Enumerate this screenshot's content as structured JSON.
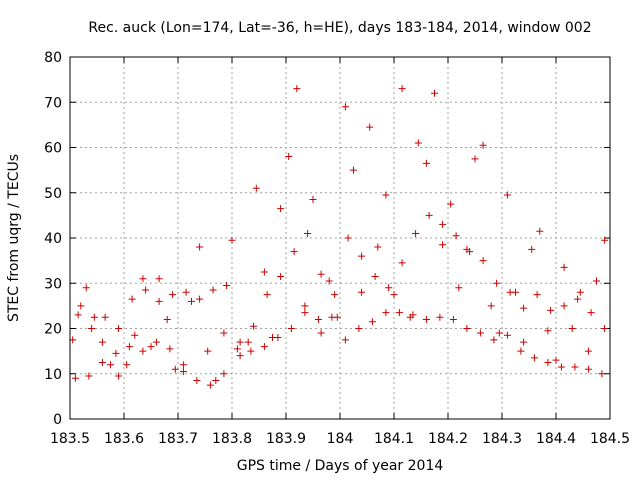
{
  "chart_data": {
    "type": "scatter",
    "title": "Rec. auck (Lon=174, Lat=-36, h=HE), days 183-184, 2014, window 002",
    "xlabel": "GPS time / Days of year 2014",
    "ylabel": "STEC from uqrg / TECUs",
    "xlim": [
      183.5,
      184.5
    ],
    "ylim": [
      0,
      80
    ],
    "xticks": [
      "183.5",
      "183.6",
      "183.7",
      "183.8",
      "183.9",
      "184",
      "184.1",
      "184.2",
      "184.3",
      "184.4",
      "184.5"
    ],
    "yticks": [
      "0",
      "10",
      "20",
      "30",
      "40",
      "50",
      "60",
      "70",
      "80"
    ],
    "grid": true,
    "marker": "+",
    "marker_color": "#cc0000",
    "series": [
      {
        "name": "",
        "points": [
          [
            183.505,
            17.5
          ],
          [
            183.52,
            25.0
          ],
          [
            183.53,
            29.0
          ],
          [
            183.545,
            22.5
          ],
          [
            183.56,
            17.0
          ],
          [
            183.575,
            12.0
          ],
          [
            183.59,
            9.5
          ],
          [
            183.605,
            12.0
          ],
          [
            183.62,
            18.5
          ],
          [
            183.635,
            31.0
          ],
          [
            183.65,
            16.0
          ],
          [
            183.665,
            31.0
          ],
          [
            183.68,
            22.0
          ],
          [
            183.695,
            11.0
          ],
          [
            183.71,
            12.0
          ],
          [
            183.725,
            26.0
          ],
          [
            183.74,
            38.0
          ],
          [
            183.755,
            15.0
          ],
          [
            183.77,
            8.5
          ],
          [
            183.785,
            19.0
          ],
          [
            183.8,
            39.5
          ],
          [
            183.815,
            14.0
          ],
          [
            183.83,
            17.0
          ],
          [
            183.845,
            51.0
          ],
          [
            183.86,
            32.5
          ],
          [
            183.875,
            18.0
          ],
          [
            183.89,
            46.5
          ],
          [
            183.905,
            58.0
          ],
          [
            183.92,
            73.0
          ],
          [
            183.935,
            25.0
          ],
          [
            183.95,
            48.5
          ],
          [
            183.965,
            19.0
          ],
          [
            183.98,
            30.5
          ],
          [
            183.995,
            22.5
          ],
          [
            184.01,
            69.0
          ],
          [
            184.025,
            55.0
          ],
          [
            184.04,
            28.0
          ],
          [
            184.055,
            64.5
          ],
          [
            184.07,
            38.0
          ],
          [
            184.085,
            49.5
          ],
          [
            184.1,
            27.5
          ],
          [
            184.115,
            73.0
          ],
          [
            184.13,
            22.5
          ],
          [
            184.145,
            61.0
          ],
          [
            184.16,
            56.5
          ],
          [
            184.175,
            72.0
          ],
          [
            184.19,
            38.5
          ],
          [
            184.205,
            47.5
          ],
          [
            184.22,
            29.0
          ],
          [
            184.235,
            37.5
          ],
          [
            184.25,
            57.5
          ],
          [
            184.265,
            60.5
          ],
          [
            184.28,
            25.0
          ],
          [
            184.295,
            19.0
          ],
          [
            184.31,
            49.5
          ],
          [
            184.325,
            28.0
          ],
          [
            184.34,
            17.0
          ],
          [
            184.355,
            37.5
          ],
          [
            184.37,
            41.5
          ],
          [
            184.385,
            19.5
          ],
          [
            184.4,
            13.0
          ],
          [
            184.415,
            33.5
          ],
          [
            184.43,
            20.0
          ],
          [
            184.445,
            28.0
          ],
          [
            184.46,
            15.0
          ],
          [
            184.475,
            30.5
          ],
          [
            184.49,
            39.5
          ],
          [
            183.51,
            9.0
          ],
          [
            183.535,
            9.5
          ],
          [
            183.56,
            12.5
          ],
          [
            183.585,
            14.5
          ],
          [
            183.61,
            16.0
          ],
          [
            183.635,
            15.0
          ],
          [
            183.66,
            17.0
          ],
          [
            183.685,
            15.5
          ],
          [
            183.71,
            10.5
          ],
          [
            183.735,
            8.5
          ],
          [
            183.76,
            7.5
          ],
          [
            183.785,
            10.0
          ],
          [
            183.81,
            15.5
          ],
          [
            183.835,
            15.0
          ],
          [
            183.86,
            16.0
          ],
          [
            183.885,
            18.0
          ],
          [
            183.91,
            20.0
          ],
          [
            183.935,
            23.5
          ],
          [
            183.96,
            22.0
          ],
          [
            183.985,
            22.5
          ],
          [
            184.01,
            17.5
          ],
          [
            184.035,
            20.0
          ],
          [
            184.06,
            21.5
          ],
          [
            184.085,
            23.5
          ],
          [
            184.11,
            23.5
          ],
          [
            184.135,
            23.0
          ],
          [
            184.16,
            22.0
          ],
          [
            184.185,
            22.5
          ],
          [
            184.21,
            22.0
          ],
          [
            184.235,
            20.0
          ],
          [
            184.26,
            19.0
          ],
          [
            184.285,
            17.5
          ],
          [
            184.31,
            18.5
          ],
          [
            184.335,
            15.0
          ],
          [
            184.36,
            13.5
          ],
          [
            184.385,
            12.5
          ],
          [
            184.41,
            11.5
          ],
          [
            184.435,
            11.5
          ],
          [
            184.46,
            11.0
          ],
          [
            184.485,
            10.0
          ],
          [
            183.515,
            23.0
          ],
          [
            183.54,
            20.0
          ],
          [
            183.565,
            22.5
          ],
          [
            183.59,
            20.0
          ],
          [
            183.615,
            26.5
          ],
          [
            183.64,
            28.5
          ],
          [
            183.665,
            26.0
          ],
          [
            183.69,
            27.5
          ],
          [
            183.715,
            28.0
          ],
          [
            183.74,
            26.5
          ],
          [
            183.765,
            28.5
          ],
          [
            183.79,
            29.5
          ],
          [
            183.815,
            17.0
          ],
          [
            183.84,
            20.5
          ],
          [
            183.865,
            27.5
          ],
          [
            183.89,
            31.5
          ],
          [
            183.915,
            37.0
          ],
          [
            183.94,
            41.0
          ],
          [
            183.965,
            32.0
          ],
          [
            183.99,
            27.5
          ],
          [
            184.015,
            40.0
          ],
          [
            184.04,
            36.0
          ],
          [
            184.065,
            31.5
          ],
          [
            184.09,
            29.0
          ],
          [
            184.115,
            34.5
          ],
          [
            184.14,
            41.0
          ],
          [
            184.165,
            45.0
          ],
          [
            184.19,
            43.0
          ],
          [
            184.215,
            40.5
          ],
          [
            184.24,
            37.0
          ],
          [
            184.265,
            35.0
          ],
          [
            184.29,
            30.0
          ],
          [
            184.315,
            28.0
          ],
          [
            184.34,
            24.5
          ],
          [
            184.365,
            27.5
          ],
          [
            184.39,
            24.0
          ],
          [
            184.415,
            25.0
          ],
          [
            184.44,
            26.5
          ],
          [
            184.465,
            23.5
          ],
          [
            184.49,
            20.0
          ]
        ]
      }
    ]
  }
}
